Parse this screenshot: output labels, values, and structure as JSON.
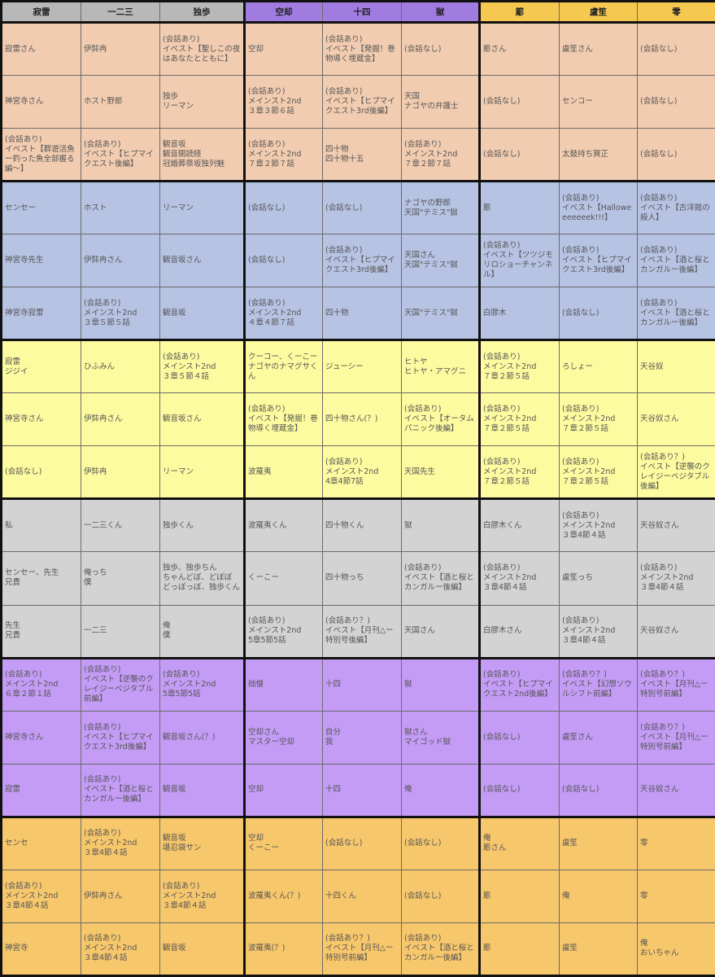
{
  "header_colors": [
    "#b8b8b8",
    "#b8b8b8",
    "#b8b8b8",
    "#a07ce0",
    "#a07ce0",
    "#a07ce0",
    "#f5c850",
    "#f5c850",
    "#f5c850"
  ],
  "columns": [
    "寂雷",
    "一二三",
    "独歩",
    "空却",
    "十四",
    "獄",
    "簓",
    "盧笙",
    "零"
  ],
  "rows": [
    [
      "寂雷さん",
      "伊弉冉",
      "(会話あり)\nイベスト【聖しこの夜はあなたとともに】",
      "空却",
      "(会話あり)\nイベスト【発掘！巻物導く埋蔵金】",
      "(会話なし)",
      "簓さん",
      "盧笙さん",
      "(会話なし)"
    ],
    [
      "神宮寺さん",
      "ホスト野郎",
      "独歩\nリーマン",
      "(会話あり)\nメインスト2nd\n３章３節６話",
      "(会話あり)\nイベスト【ヒプマイクエスト3rd後編】",
      "天国\nナゴヤの弁護士",
      "(会話なし)",
      "センコー",
      "(会話なし)"
    ],
    [
      "(会話あり)\nイベスト【群遊活魚ー釣った魚全部握る編〜】",
      "(会話あり)\nイベスト【ヒプマイクエスト後編】",
      "観音坂\n観音開読経\n冠婚葬祭坂独列魅",
      "(会話あり)\nメインスト2nd\n７章２節７話",
      "四十物\n四十物十五",
      "(会話あり)\nメインスト2nd\n７章２節７話",
      "(会話なし)",
      "太鼓持ち賀正",
      "(会話なし)"
    ],
    [
      "センセー",
      "ホスト",
      "リーマン",
      "(会話なし)",
      "(会話なし)",
      "ナゴヤの野郎\n天国\"テミス\"獄",
      "簓",
      "(会話あり)\nイベスト【Halloweeeeeeek!!!】",
      "(会話あり)\nイベスト【古洋館の殺人】"
    ],
    [
      "神宮寺先生",
      "伊弉冉さん",
      "観音坂さん",
      "(会話なし)",
      "(会話あり)\nイベスト【ヒプマイクエスト3rd後編】",
      "天国さん\n天国\"テミス\"獄",
      "(会話あり)\nイベスト【ツツジモリロショーチャンネル】",
      "(会話あり)\nイベスト【ヒプマイクエスト3rd後編】",
      "(会話あり)\nイベスト【酒と桜とカンガルー後編】"
    ],
    [
      "神宮寺寂雷",
      "(会話あり)\nメインスト2nd\n３章５節５話",
      "観音坂",
      "(会話あり)\nメインスト2nd\n４章４節７話",
      "四十物",
      "天国\"テミス\"獄",
      "白膠木",
      "(会話なし)",
      "(会話あり)\nイベスト【酒と桜とカンガルー後編】"
    ],
    [
      "寂雷\nジジイ",
      "ひふみん",
      "(会話あり)\nメインスト2nd\n３章５節４話",
      "クーコー、くーこーナゴヤのナマグサくん",
      "ジューシー",
      "ヒトヤ\nヒトヤ・アマグニ",
      "(会話あり)\nメインスト2nd\n７章２節５話",
      "ろしょー",
      "天谷奴"
    ],
    [
      "神宮寺さん",
      "伊弉冉さん",
      "観音坂さん",
      "(会話あり)\nイベスト【発掘！巻物導く埋蔵金】",
      "四十物さん(？)",
      "(会話あり)\nイベスト【オータムパニック後編】",
      "(会話あり)\nメインスト2nd\n７章２節５話",
      "(会話あり)\nメインスト2nd\n７章２節５話",
      "天谷奴さん"
    ],
    [
      "(会話なし)",
      "伊弉冉",
      "リーマン",
      "波羅夷",
      "(会話あり)\nメインスト2nd\n4章4節7話",
      "天国先生",
      "(会話あり)\nメインスト2nd\n７章２節５話",
      "(会話あり)\nメインスト2nd\n７章２節５話",
      "(会話あり？)\nイベスト【逆襲のクレイジーベジタブル後編】"
    ],
    [
      "私",
      "一二三くん",
      "独歩くん",
      "波羅夷くん",
      "四十物くん",
      "獄",
      "白膠木くん",
      "(会話あり)\nメインスト2nd\n３章4節４話",
      "天谷奴さん"
    ],
    [
      "センセー、先生\n兄貴",
      "俺っち\n僕",
      "独歩、独歩ちん\nちゃんどぽ、どぽぽ\nどっぽっぽ、独歩くん",
      "くーこー",
      "四十物っち",
      "(会話あり)\nイベスト【酒と桜とカンガルー後編】",
      "(会話あり)\nメインスト2nd\n３章4節４話",
      "盧笙っち",
      "(会話あり)\nメインスト2nd\n３章4節４話"
    ],
    [
      "先生\n兄貴",
      "一二三",
      "俺\n僕",
      "(会話あり)\nメインスト2nd\n5章5節5話",
      "(会話あり？)\nイベスト【月刊△ー特別号後編】",
      "天国さん",
      "白膠木さん",
      "(会話あり)\nメインスト2nd\n３章4節４話",
      "天谷奴さん"
    ],
    [
      "(会話あり)\nメインスト2nd\n６章２節１話",
      "(会話あり)\nイベスト【逆襲のクレイジーベジタブル前編】",
      "(会話あり)\nメインスト2nd\n5章5節5話",
      "拙僧",
      "十四",
      "獄",
      "(会話あり)\nイベスト【ヒプマイクエスト2nd後編】",
      "(会話あり？)\nイベスト【幻想ソウルシフト前編】",
      "(会話あり？)\nイベスト【月刊△ー特別号前編】"
    ],
    [
      "神宮寺さん",
      "(会話あり)\nイベスト【ヒプマイクエスト3rd後編】",
      "観音坂さん(？)",
      "空却さん\nマスター空却",
      "自分\n我",
      "獄さん\nマイゴッド獄",
      "(会話なし)",
      "盧笙さん",
      "(会話あり？)\nイベスト【月刊△ー特別号前編】"
    ],
    [
      "寂雷",
      "(会話あり)\nイベスト【酒と桜とカンガルー後編】",
      "観音坂",
      "空却",
      "十四",
      "俺",
      "(会話なし)",
      "(会話なし)",
      "天谷奴さん"
    ],
    [
      "センセ",
      "(会話あり)\nメインスト2nd\n３章4節４話",
      "観音坂\n堪忍袋サン",
      "空却\nくーこー",
      "(会話なし)",
      "(会話なし)",
      "俺\n簓さん",
      "盧笙",
      "零"
    ],
    [
      "(会話あり)\nメインスト2nd\n３章4節４話",
      "伊弉冉さん",
      "(会話あり)\nメインスト2nd\n３章4節４話",
      "波羅夷くん(？)",
      "十四くん",
      "(会話なし)",
      "簓",
      "俺",
      "零"
    ],
    [
      "神宮寺",
      "(会話あり)\nメインスト2nd\n３章4節４話",
      "観音坂",
      "波羅夷(？)",
      "(会話あり？)\nイベスト【月刊△ー特別号前編】",
      "(会話あり)\nイベスト【酒と桜とカンガルー後編】",
      "簓",
      "盧笙",
      "俺\nおいちゃん"
    ]
  ]
}
